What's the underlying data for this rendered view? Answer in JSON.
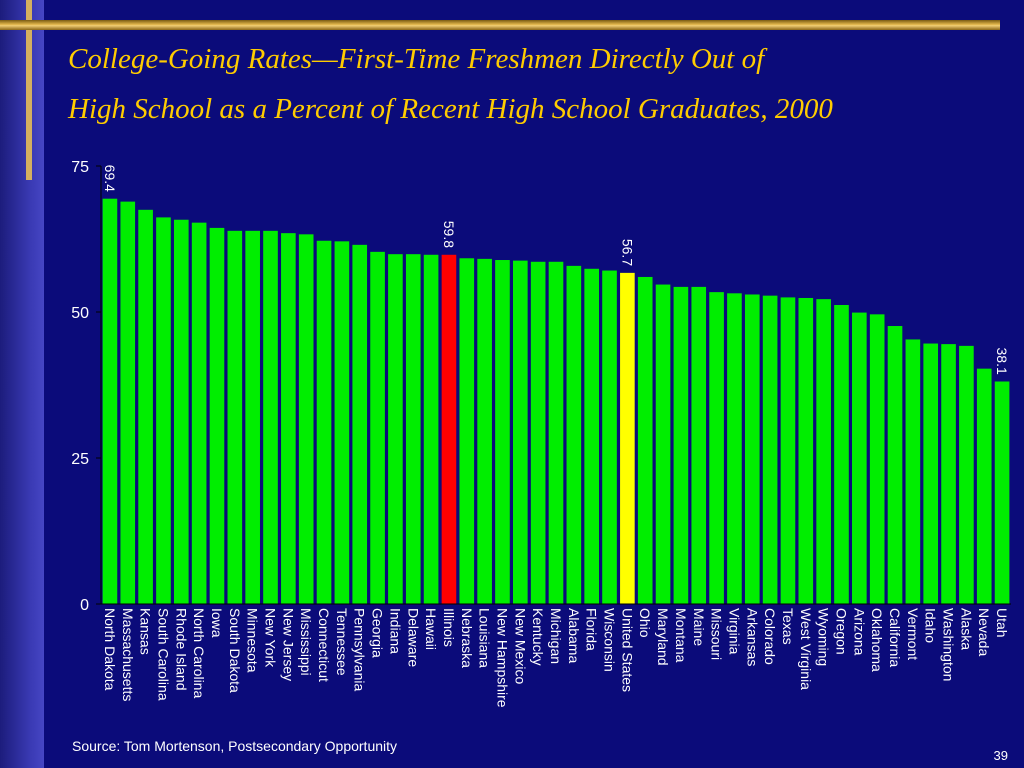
{
  "slide": {
    "title_line1": "College-Going Rates—First-Time Freshmen Directly Out of",
    "title_line2": "High School as a Percent of Recent High School Graduates, 2000",
    "source": "Source:  Tom Mortenson, Postsecondary Opportunity",
    "page_number": "39",
    "colors": {
      "background": "#0b0b7a",
      "title": "#ffcc00",
      "accent_rule": "#e2b64a"
    }
  },
  "chart_data": {
    "type": "bar",
    "ylim": [
      0,
      75
    ],
    "yticks": [
      0,
      25,
      50,
      75
    ],
    "categories": [
      "North Dakota",
      "Massachusetts",
      "Kansas",
      "South Carolina",
      "Rhode Island",
      "North Carolina",
      "Iowa",
      "South Dakota",
      "Minnesota",
      "New York",
      "New Jersey",
      "Mississippi",
      "Connecticut",
      "Tennessee",
      "Pennsylvania",
      "Georgia",
      "Indiana",
      "Delaware",
      "Hawaii",
      "Illinois",
      "Nebraska",
      "Louisiana",
      "New Hampshire",
      "New Mexico",
      "Kentucky",
      "Michigan",
      "Alabama",
      "Florida",
      "Wisconsin",
      "United States",
      "Ohio",
      "Maryland",
      "Montana",
      "Maine",
      "Missouri",
      "Virginia",
      "Arkansas",
      "Colorado",
      "Texas",
      "West Virginia",
      "Wyoming",
      "Oregon",
      "Arizona",
      "Oklahoma",
      "California",
      "Vermont",
      "Idaho",
      "Washington",
      "Alaska",
      "Nevada",
      "Utah"
    ],
    "values": [
      69.4,
      68.9,
      67.5,
      66.2,
      65.8,
      65.3,
      64.4,
      63.9,
      63.9,
      63.9,
      63.5,
      63.3,
      62.2,
      62.1,
      61.5,
      60.3,
      59.9,
      59.9,
      59.8,
      59.8,
      59.2,
      59.1,
      58.9,
      58.8,
      58.6,
      58.6,
      57.9,
      57.4,
      57.1,
      56.7,
      56.0,
      54.7,
      54.3,
      54.3,
      53.4,
      53.2,
      53.0,
      52.8,
      52.5,
      52.4,
      52.2,
      51.2,
      49.9,
      49.6,
      47.6,
      45.3,
      44.6,
      44.5,
      44.2,
      40.3,
      38.1
    ],
    "bar_color": "#00ee00",
    "highlights": [
      {
        "category": "Illinois",
        "color": "#ff0000"
      },
      {
        "category": "United States",
        "color": "#ffff00"
      }
    ],
    "data_labels": [
      {
        "category": "North Dakota",
        "text": "69.4"
      },
      {
        "category": "Illinois",
        "text": "59.8"
      },
      {
        "category": "United States",
        "text": "56.7"
      },
      {
        "category": "Utah",
        "text": "38.1"
      }
    ],
    "grid": false,
    "legend": "none"
  }
}
